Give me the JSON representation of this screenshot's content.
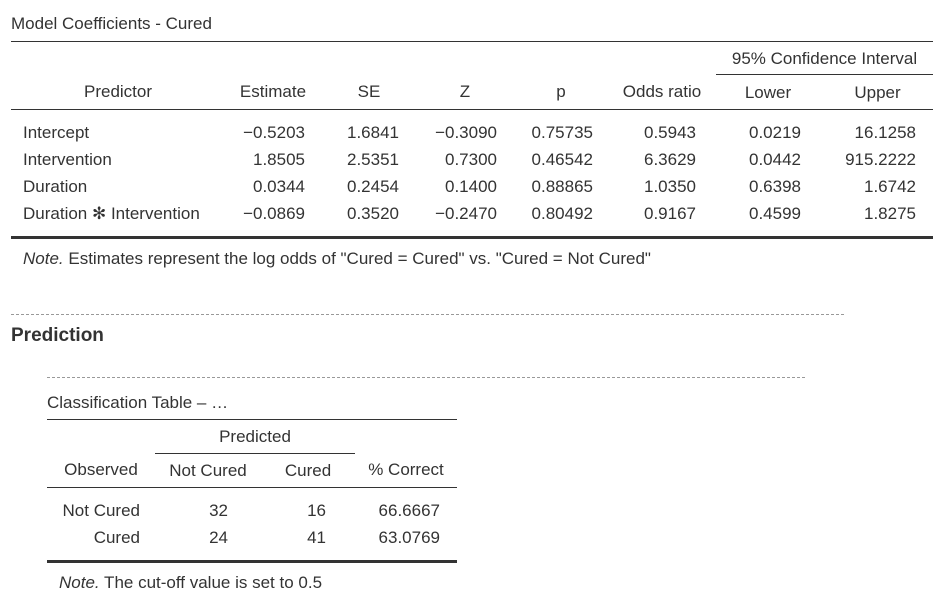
{
  "coef": {
    "title": "Model Coefficients - Cured",
    "ci_header": "95% Confidence Interval",
    "columns": [
      "Predictor",
      "Estimate",
      "SE",
      "Z",
      "p",
      "Odds ratio",
      "Lower",
      "Upper"
    ],
    "rows": [
      [
        "Intercept",
        "−0.5203",
        "1.6841",
        "−0.3090",
        "0.75735",
        "0.5943",
        "0.0219",
        "16.1258"
      ],
      [
        "Intervention",
        "1.8505",
        "2.5351",
        "0.7300",
        "0.46542",
        "6.3629",
        "0.0442",
        "915.2222"
      ],
      [
        "Duration",
        "0.0344",
        "0.2454",
        "0.1400",
        "0.88865",
        "1.0350",
        "0.6398",
        "1.6742"
      ],
      [
        "Duration ✻ Intervention",
        "−0.0869",
        "0.3520",
        "−0.2470",
        "0.80492",
        "0.9167",
        "0.4599",
        "1.8275"
      ]
    ],
    "note_label": "Note.",
    "note_text": " Estimates represent the log odds of \"Cured = Cured\" vs. \"Cured = Not Cured\""
  },
  "prediction": {
    "section_title": "Prediction",
    "class_title": "Classification Table – …",
    "predicted_header": "Predicted",
    "columns": [
      "Observed",
      "Not Cured",
      "Cured",
      "% Correct"
    ],
    "rows": [
      [
        "Not Cured",
        "32",
        "16",
        "66.6667"
      ],
      [
        "Cured",
        "24",
        "41",
        "63.0769"
      ]
    ],
    "note_label": "Note.",
    "note_text": " The cut-off value is set to 0.5"
  }
}
